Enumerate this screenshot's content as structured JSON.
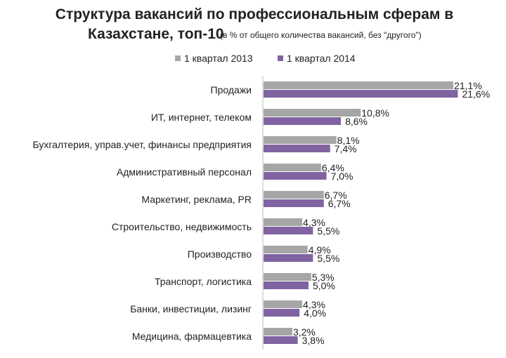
{
  "chart_data": {
    "type": "bar",
    "orientation": "horizontal",
    "title_line1": "Структура вакансий по профессиональным сферам в",
    "title_line2": "Казахстане, топ-10",
    "subtitle": "(в % от общего количества вакансий, без \"другого\")",
    "categories": [
      "Продажи",
      "ИТ,  интернет, телеком",
      "Бухгалтерия, управ.учет, финансы предприятия",
      "Административный персонал",
      "Маркетинг, реклама, PR",
      "Строительство, недвижимость",
      "Производство",
      "Транспорт, логистика",
      "Банки, инвестиции, лизинг",
      "Медицина, фармацевтика"
    ],
    "series": [
      {
        "name": "1 квартал 2013",
        "color": "#a6a6a6",
        "values": [
          21.1,
          10.8,
          8.1,
          6.4,
          6.7,
          4.3,
          4.9,
          5.3,
          4.3,
          3.2
        ],
        "labels": [
          "21,1%",
          "10,8%",
          "8,1%",
          "6,4%",
          "6,7%",
          "4,3%",
          "4,9%",
          "5,3%",
          "4,3%",
          "3,2%"
        ]
      },
      {
        "name": "1 квартал 2014",
        "color": "#8064a2",
        "values": [
          21.6,
          8.6,
          7.4,
          7.0,
          6.7,
          5.5,
          5.5,
          5.0,
          4.0,
          3.8
        ],
        "labels": [
          "21,6%",
          "8,6%",
          "7,4%",
          "7,0%",
          "6,7%",
          "5,5%",
          "5,5%",
          "5,0%",
          "4,0%",
          "3,8%"
        ]
      }
    ],
    "legend": "top",
    "xlim": [
      0,
      25
    ],
    "grid": false
  }
}
